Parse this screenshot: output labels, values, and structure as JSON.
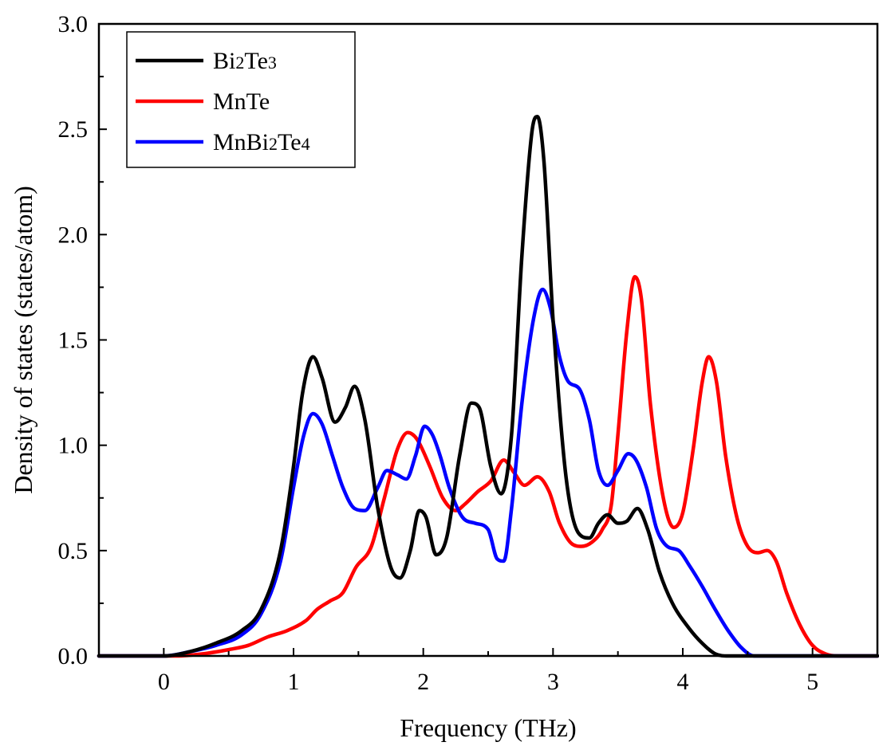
{
  "chart_data": {
    "type": "line",
    "title": "",
    "xlabel": "Frequency (THz)",
    "ylabel": "Density of states (states/atom)",
    "xlim": [
      -0.5,
      5.5
    ],
    "ylim": [
      0.0,
      3.0
    ],
    "x_ticks": [
      "0",
      "1",
      "2",
      "3",
      "4",
      "5"
    ],
    "y_ticks": [
      "0.0",
      "0.5",
      "1.0",
      "1.5",
      "2.0",
      "2.5",
      "3.0"
    ],
    "grid": false,
    "legend_position": "top-left",
    "series": [
      {
        "name": "Bi2Te3",
        "legend": {
          "base1": "Bi",
          "sub1": "2",
          "base2": "Te",
          "sub2": "3"
        },
        "color": "#000000",
        "points": [
          [
            -0.5,
            0
          ],
          [
            0,
            0
          ],
          [
            0.2,
            0.02
          ],
          [
            0.4,
            0.06
          ],
          [
            0.6,
            0.12
          ],
          [
            0.75,
            0.22
          ],
          [
            0.9,
            0.5
          ],
          [
            1.0,
            0.9
          ],
          [
            1.07,
            1.25
          ],
          [
            1.15,
            1.42
          ],
          [
            1.22,
            1.32
          ],
          [
            1.32,
            1.11
          ],
          [
            1.4,
            1.18
          ],
          [
            1.47,
            1.28
          ],
          [
            1.55,
            1.12
          ],
          [
            1.65,
            0.7
          ],
          [
            1.75,
            0.42
          ],
          [
            1.82,
            0.37
          ],
          [
            1.9,
            0.5
          ],
          [
            1.97,
            0.69
          ],
          [
            2.02,
            0.66
          ],
          [
            2.1,
            0.48
          ],
          [
            2.18,
            0.56
          ],
          [
            2.28,
            0.95
          ],
          [
            2.37,
            1.2
          ],
          [
            2.43,
            1.18
          ],
          [
            2.52,
            0.9
          ],
          [
            2.6,
            0.77
          ],
          [
            2.68,
            1.05
          ],
          [
            2.76,
            1.9
          ],
          [
            2.84,
            2.5
          ],
          [
            2.88,
            2.56
          ],
          [
            2.93,
            2.35
          ],
          [
            3.0,
            1.6
          ],
          [
            3.1,
            0.85
          ],
          [
            3.2,
            0.58
          ],
          [
            3.28,
            0.56
          ],
          [
            3.35,
            0.63
          ],
          [
            3.42,
            0.67
          ],
          [
            3.5,
            0.63
          ],
          [
            3.57,
            0.64
          ],
          [
            3.65,
            0.7
          ],
          [
            3.73,
            0.6
          ],
          [
            3.82,
            0.4
          ],
          [
            3.92,
            0.25
          ],
          [
            4.05,
            0.13
          ],
          [
            4.15,
            0.06
          ],
          [
            4.25,
            0.01
          ],
          [
            4.35,
            0
          ],
          [
            5.5,
            0
          ]
        ]
      },
      {
        "name": "MnTe",
        "legend": {
          "base1": "MnTe",
          "sub1": "",
          "base2": "",
          "sub2": ""
        },
        "color": "#ff0000",
        "points": [
          [
            -0.5,
            0
          ],
          [
            0.1,
            0
          ],
          [
            0.3,
            0.01
          ],
          [
            0.5,
            0.03
          ],
          [
            0.65,
            0.05
          ],
          [
            0.8,
            0.09
          ],
          [
            0.95,
            0.12
          ],
          [
            1.1,
            0.17
          ],
          [
            1.18,
            0.22
          ],
          [
            1.28,
            0.26
          ],
          [
            1.38,
            0.3
          ],
          [
            1.48,
            0.42
          ],
          [
            1.6,
            0.52
          ],
          [
            1.7,
            0.75
          ],
          [
            1.8,
            0.98
          ],
          [
            1.88,
            1.06
          ],
          [
            1.95,
            1.03
          ],
          [
            2.05,
            0.9
          ],
          [
            2.15,
            0.75
          ],
          [
            2.25,
            0.69
          ],
          [
            2.32,
            0.72
          ],
          [
            2.42,
            0.78
          ],
          [
            2.52,
            0.83
          ],
          [
            2.62,
            0.93
          ],
          [
            2.7,
            0.87
          ],
          [
            2.78,
            0.81
          ],
          [
            2.88,
            0.85
          ],
          [
            2.97,
            0.78
          ],
          [
            3.05,
            0.63
          ],
          [
            3.15,
            0.53
          ],
          [
            3.22,
            0.52
          ],
          [
            3.3,
            0.54
          ],
          [
            3.38,
            0.6
          ],
          [
            3.45,
            0.72
          ],
          [
            3.5,
            1.05
          ],
          [
            3.57,
            1.55
          ],
          [
            3.63,
            1.8
          ],
          [
            3.68,
            1.7
          ],
          [
            3.75,
            1.2
          ],
          [
            3.85,
            0.75
          ],
          [
            3.93,
            0.61
          ],
          [
            4.0,
            0.68
          ],
          [
            4.08,
            0.98
          ],
          [
            4.15,
            1.3
          ],
          [
            4.2,
            1.42
          ],
          [
            4.26,
            1.3
          ],
          [
            4.33,
            0.95
          ],
          [
            4.42,
            0.65
          ],
          [
            4.5,
            0.52
          ],
          [
            4.58,
            0.49
          ],
          [
            4.65,
            0.5
          ],
          [
            4.72,
            0.45
          ],
          [
            4.8,
            0.3
          ],
          [
            4.9,
            0.15
          ],
          [
            5.0,
            0.05
          ],
          [
            5.1,
            0.01
          ],
          [
            5.2,
            0
          ],
          [
            5.5,
            0
          ]
        ]
      },
      {
        "name": "MnBi2Te4",
        "legend": {
          "base1": "MnBi",
          "sub1": "2",
          "base2": "Te",
          "sub2": "4"
        },
        "color": "#0000ff",
        "points": [
          [
            -0.5,
            0
          ],
          [
            0,
            0
          ],
          [
            0.2,
            0.02
          ],
          [
            0.4,
            0.05
          ],
          [
            0.6,
            0.1
          ],
          [
            0.75,
            0.2
          ],
          [
            0.9,
            0.45
          ],
          [
            1.0,
            0.8
          ],
          [
            1.08,
            1.05
          ],
          [
            1.15,
            1.15
          ],
          [
            1.22,
            1.1
          ],
          [
            1.3,
            0.95
          ],
          [
            1.38,
            0.8
          ],
          [
            1.47,
            0.7
          ],
          [
            1.55,
            0.69
          ],
          [
            1.65,
            0.8
          ],
          [
            1.72,
            0.88
          ],
          [
            1.8,
            0.86
          ],
          [
            1.87,
            0.84
          ],
          [
            1.94,
            0.95
          ],
          [
            2.01,
            1.09
          ],
          [
            2.07,
            1.05
          ],
          [
            2.13,
            0.95
          ],
          [
            2.2,
            0.8
          ],
          [
            2.3,
            0.66
          ],
          [
            2.4,
            0.63
          ],
          [
            2.5,
            0.6
          ],
          [
            2.57,
            0.46
          ],
          [
            2.62,
            0.45
          ],
          [
            2.68,
            0.7
          ],
          [
            2.76,
            1.2
          ],
          [
            2.85,
            1.6
          ],
          [
            2.92,
            1.74
          ],
          [
            2.98,
            1.65
          ],
          [
            3.05,
            1.42
          ],
          [
            3.12,
            1.3
          ],
          [
            3.2,
            1.27
          ],
          [
            3.28,
            1.12
          ],
          [
            3.35,
            0.88
          ],
          [
            3.42,
            0.81
          ],
          [
            3.5,
            0.88
          ],
          [
            3.58,
            0.96
          ],
          [
            3.64,
            0.93
          ],
          [
            3.72,
            0.8
          ],
          [
            3.8,
            0.6
          ],
          [
            3.88,
            0.52
          ],
          [
            3.97,
            0.5
          ],
          [
            4.05,
            0.43
          ],
          [
            4.15,
            0.33
          ],
          [
            4.25,
            0.22
          ],
          [
            4.35,
            0.12
          ],
          [
            4.45,
            0.04
          ],
          [
            4.55,
            0
          ],
          [
            5.5,
            0
          ]
        ]
      }
    ]
  }
}
